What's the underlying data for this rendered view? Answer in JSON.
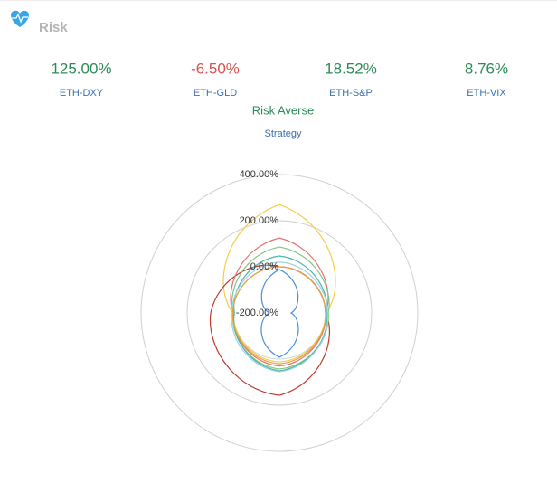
{
  "header": {
    "title": "Risk"
  },
  "stats": [
    {
      "value": "125.00%",
      "label": "ETH-DXY",
      "color": "#2e8b57"
    },
    {
      "value": "-6.50%",
      "label": "ETH-GLD",
      "color": "#d9534f"
    },
    {
      "value": "18.52%",
      "label": "ETH-S&P",
      "color": "#2e8b57"
    },
    {
      "value": "8.76%",
      "label": "ETH-VIX",
      "color": "#2e8b57"
    }
  ],
  "strategy": {
    "name": "Risk Averse",
    "label": "Strategy"
  },
  "chart_data": {
    "type": "radar",
    "categories": [
      null,
      null,
      null,
      null
    ],
    "rlim": [
      -200,
      400
    ],
    "rticks": [
      {
        "value": -200,
        "label": "-200.00%"
      },
      {
        "value": 0,
        "label": "0.00%"
      },
      {
        "value": 200,
        "label": "200.00%"
      },
      {
        "value": 400,
        "label": "400.00%"
      }
    ],
    "grid": true,
    "series": [
      {
        "color": "#f2cf4a",
        "values": [
          270,
          0,
          12,
          0
        ]
      },
      {
        "color": "#c0392b",
        "values": [
          0,
          0,
          157,
          98
        ]
      },
      {
        "color": "#e57373",
        "values": [
          125,
          0,
          30,
          0
        ]
      },
      {
        "color": "#81c784",
        "values": [
          86,
          12,
          43,
          0
        ]
      },
      {
        "color": "#4db6ac",
        "values": [
          47,
          5,
          51,
          -5
        ]
      },
      {
        "color": "#9fd3e6",
        "values": [
          20,
          8,
          55,
          5
        ]
      },
      {
        "color": "#e6a23c",
        "values": [
          0,
          0,
          20,
          2
        ]
      },
      {
        "color": "#4a90d9",
        "values": [
          -12,
          -149,
          -8,
          -157
        ]
      }
    ]
  }
}
